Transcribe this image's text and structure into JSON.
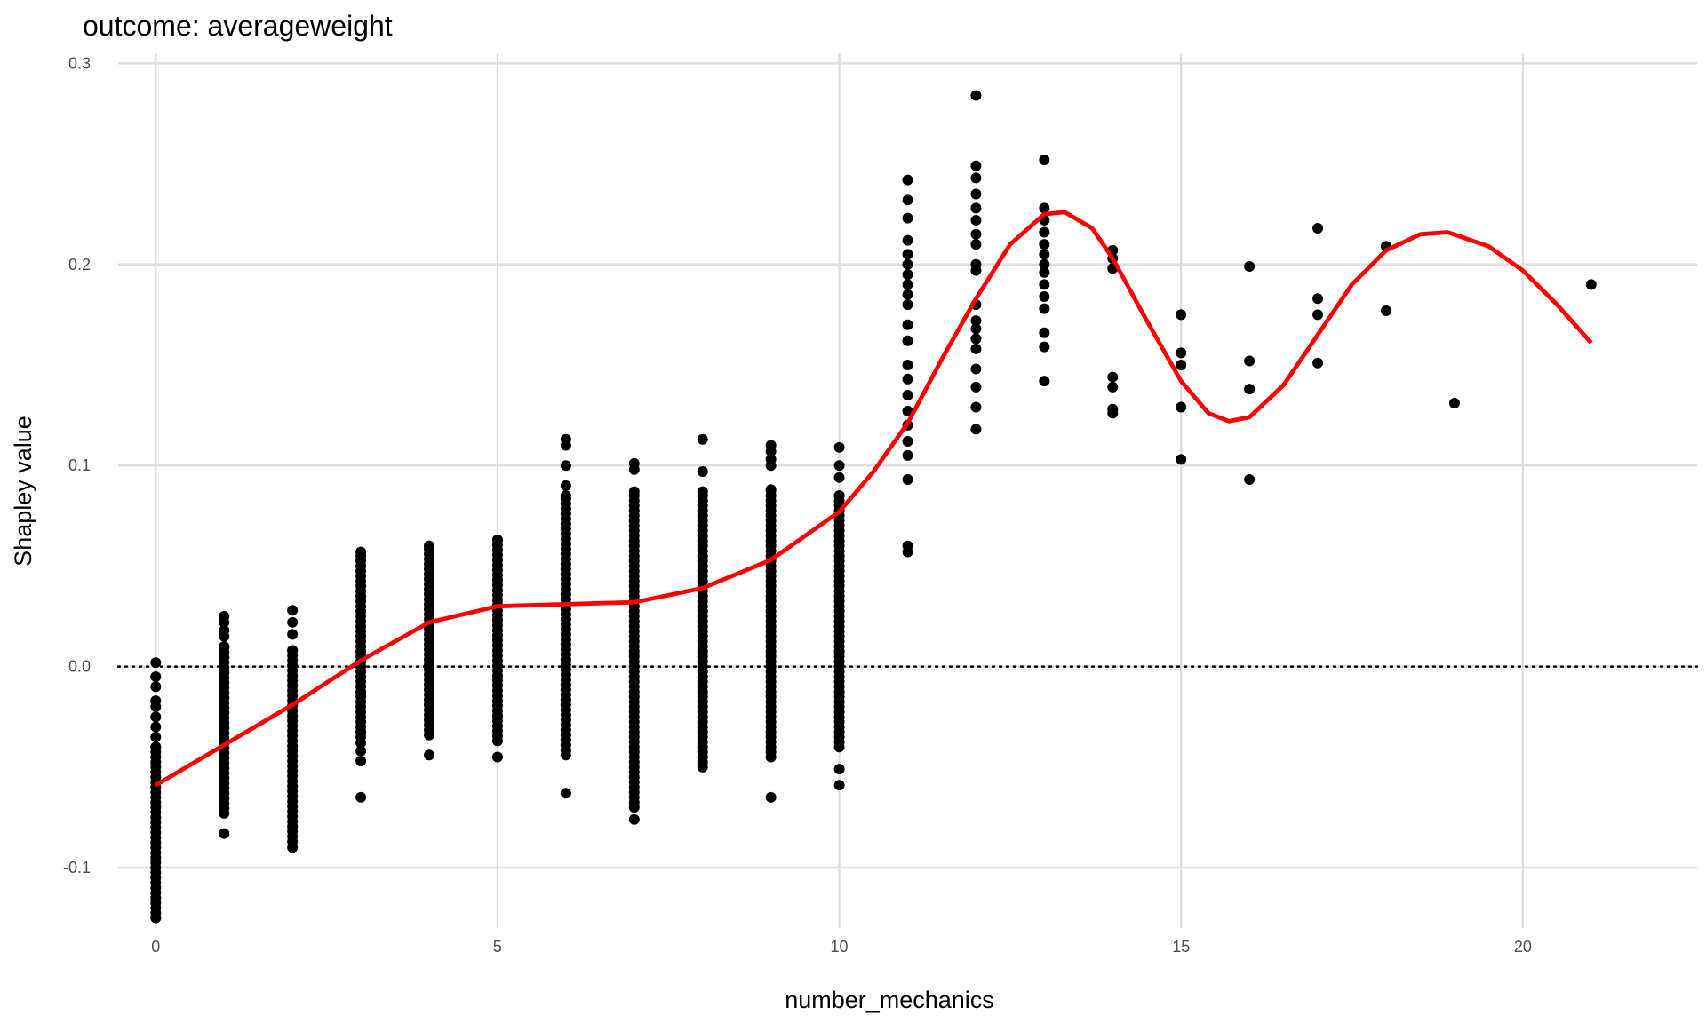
{
  "chart_data": {
    "type": "scatter",
    "title": "outcome: averageweight",
    "xlabel": "number_mechanics",
    "ylabel": "Shapley value",
    "xlim": [
      -0.55,
      22.55
    ],
    "ylim": [
      -0.13,
      0.305
    ],
    "x_ticks": [
      0,
      5,
      10,
      15,
      20
    ],
    "x_tick_labels": [
      "0",
      "5",
      "10",
      "15",
      "20"
    ],
    "y_ticks": [
      -0.1,
      0.0,
      0.1,
      0.2,
      0.3
    ],
    "y_tick_labels": [
      "-0.1",
      "0.0",
      "0.1",
      "0.2",
      "0.3"
    ],
    "grid": true,
    "reference_line": {
      "y": 0,
      "style": "dotted"
    },
    "colors": {
      "points": "#000000",
      "smooth": "#ff0000",
      "grid": "#dedede"
    },
    "point_columns": [
      {
        "x": 0,
        "min": -0.125,
        "max": -0.04,
        "extra": [
          0.002,
          -0.005,
          -0.01,
          -0.017,
          -0.02,
          -0.025,
          -0.03,
          -0.035
        ]
      },
      {
        "x": 1,
        "min": -0.073,
        "max": 0.01,
        "extra": [
          0.025,
          0.022,
          0.018,
          0.015,
          -0.083
        ]
      },
      {
        "x": 2,
        "min": -0.087,
        "max": 0.008,
        "extra": [
          0.028,
          0.022,
          0.016,
          -0.09
        ]
      },
      {
        "x": 3,
        "min": -0.035,
        "max": 0.057,
        "extra": [
          -0.038,
          -0.042,
          -0.047,
          -0.065
        ]
      },
      {
        "x": 4,
        "min": -0.034,
        "max": 0.06,
        "extra": [
          -0.044
        ]
      },
      {
        "x": 5,
        "min": -0.037,
        "max": 0.063,
        "extra": [
          -0.045
        ]
      },
      {
        "x": 6,
        "min": -0.044,
        "max": 0.085,
        "extra": [
          0.113,
          0.11,
          0.1,
          0.09,
          -0.063
        ]
      },
      {
        "x": 7,
        "min": -0.07,
        "max": 0.087,
        "extra": [
          0.101,
          0.098,
          -0.076
        ]
      },
      {
        "x": 8,
        "min": -0.05,
        "max": 0.087,
        "extra": [
          0.113,
          0.097
        ]
      },
      {
        "x": 9,
        "min": -0.045,
        "max": 0.088,
        "extra": [
          0.11,
          0.107,
          0.103,
          0.1,
          -0.065
        ]
      },
      {
        "x": 10,
        "min": -0.04,
        "max": 0.085,
        "extra": [
          0.109,
          0.1,
          0.094,
          -0.051,
          -0.059
        ]
      }
    ],
    "points": [
      {
        "x": 11,
        "y": 0.242
      },
      {
        "x": 11,
        "y": 0.232
      },
      {
        "x": 11,
        "y": 0.223
      },
      {
        "x": 11,
        "y": 0.212
      },
      {
        "x": 11,
        "y": 0.205
      },
      {
        "x": 11,
        "y": 0.2
      },
      {
        "x": 11,
        "y": 0.195
      },
      {
        "x": 11,
        "y": 0.19
      },
      {
        "x": 11,
        "y": 0.185
      },
      {
        "x": 11,
        "y": 0.18
      },
      {
        "x": 11,
        "y": 0.17
      },
      {
        "x": 11,
        "y": 0.162
      },
      {
        "x": 11,
        "y": 0.15
      },
      {
        "x": 11,
        "y": 0.143
      },
      {
        "x": 11,
        "y": 0.135
      },
      {
        "x": 11,
        "y": 0.127
      },
      {
        "x": 11,
        "y": 0.12
      },
      {
        "x": 11,
        "y": 0.112
      },
      {
        "x": 11,
        "y": 0.105
      },
      {
        "x": 11,
        "y": 0.093
      },
      {
        "x": 11,
        "y": 0.06
      },
      {
        "x": 11,
        "y": 0.057
      },
      {
        "x": 12,
        "y": 0.284
      },
      {
        "x": 12,
        "y": 0.249
      },
      {
        "x": 12,
        "y": 0.243
      },
      {
        "x": 12,
        "y": 0.235
      },
      {
        "x": 12,
        "y": 0.228
      },
      {
        "x": 12,
        "y": 0.222
      },
      {
        "x": 12,
        "y": 0.215
      },
      {
        "x": 12,
        "y": 0.21
      },
      {
        "x": 12,
        "y": 0.2
      },
      {
        "x": 12,
        "y": 0.197
      },
      {
        "x": 12,
        "y": 0.18
      },
      {
        "x": 12,
        "y": 0.172
      },
      {
        "x": 12,
        "y": 0.168
      },
      {
        "x": 12,
        "y": 0.163
      },
      {
        "x": 12,
        "y": 0.158
      },
      {
        "x": 12,
        "y": 0.148
      },
      {
        "x": 12,
        "y": 0.139
      },
      {
        "x": 12,
        "y": 0.129
      },
      {
        "x": 12,
        "y": 0.118
      },
      {
        "x": 13,
        "y": 0.252
      },
      {
        "x": 13,
        "y": 0.228
      },
      {
        "x": 13,
        "y": 0.222
      },
      {
        "x": 13,
        "y": 0.216
      },
      {
        "x": 13,
        "y": 0.21
      },
      {
        "x": 13,
        "y": 0.205
      },
      {
        "x": 13,
        "y": 0.2
      },
      {
        "x": 13,
        "y": 0.196
      },
      {
        "x": 13,
        "y": 0.19
      },
      {
        "x": 13,
        "y": 0.184
      },
      {
        "x": 13,
        "y": 0.178
      },
      {
        "x": 13,
        "y": 0.166
      },
      {
        "x": 13,
        "y": 0.159
      },
      {
        "x": 13,
        "y": 0.142
      },
      {
        "x": 14,
        "y": 0.207
      },
      {
        "x": 14,
        "y": 0.203
      },
      {
        "x": 14,
        "y": 0.198
      },
      {
        "x": 14,
        "y": 0.144
      },
      {
        "x": 14,
        "y": 0.139
      },
      {
        "x": 14,
        "y": 0.128
      },
      {
        "x": 14,
        "y": 0.126
      },
      {
        "x": 15,
        "y": 0.175
      },
      {
        "x": 15,
        "y": 0.156
      },
      {
        "x": 15,
        "y": 0.15
      },
      {
        "x": 15,
        "y": 0.129
      },
      {
        "x": 15,
        "y": 0.103
      },
      {
        "x": 16,
        "y": 0.199
      },
      {
        "x": 16,
        "y": 0.152
      },
      {
        "x": 16,
        "y": 0.138
      },
      {
        "x": 16,
        "y": 0.093
      },
      {
        "x": 17,
        "y": 0.218
      },
      {
        "x": 17,
        "y": 0.183
      },
      {
        "x": 17,
        "y": 0.175
      },
      {
        "x": 17,
        "y": 0.151
      },
      {
        "x": 18,
        "y": 0.209
      },
      {
        "x": 18,
        "y": 0.177
      },
      {
        "x": 19,
        "y": 0.131
      },
      {
        "x": 21,
        "y": 0.19
      }
    ],
    "smooth": [
      {
        "x": 0,
        "y": -0.059
      },
      {
        "x": 1,
        "y": -0.039
      },
      {
        "x": 2,
        "y": -0.019
      },
      {
        "x": 3,
        "y": 0.003
      },
      {
        "x": 4,
        "y": 0.022
      },
      {
        "x": 5,
        "y": 0.03
      },
      {
        "x": 6,
        "y": 0.031
      },
      {
        "x": 7,
        "y": 0.032
      },
      {
        "x": 8,
        "y": 0.039
      },
      {
        "x": 9,
        "y": 0.053
      },
      {
        "x": 10,
        "y": 0.077
      },
      {
        "x": 10.5,
        "y": 0.097
      },
      {
        "x": 11,
        "y": 0.121
      },
      {
        "x": 11.5,
        "y": 0.153
      },
      {
        "x": 12,
        "y": 0.183
      },
      {
        "x": 12.5,
        "y": 0.21
      },
      {
        "x": 13,
        "y": 0.225
      },
      {
        "x": 13.3,
        "y": 0.226
      },
      {
        "x": 13.7,
        "y": 0.218
      },
      {
        "x": 14,
        "y": 0.203
      },
      {
        "x": 14.5,
        "y": 0.172
      },
      {
        "x": 15,
        "y": 0.142
      },
      {
        "x": 15.4,
        "y": 0.126
      },
      {
        "x": 15.7,
        "y": 0.122
      },
      {
        "x": 16,
        "y": 0.124
      },
      {
        "x": 16.5,
        "y": 0.14
      },
      {
        "x": 17,
        "y": 0.165
      },
      {
        "x": 17.5,
        "y": 0.19
      },
      {
        "x": 18,
        "y": 0.207
      },
      {
        "x": 18.5,
        "y": 0.215
      },
      {
        "x": 18.9,
        "y": 0.216
      },
      {
        "x": 19.5,
        "y": 0.209
      },
      {
        "x": 20,
        "y": 0.197
      },
      {
        "x": 20.5,
        "y": 0.18
      },
      {
        "x": 21,
        "y": 0.161
      }
    ]
  }
}
